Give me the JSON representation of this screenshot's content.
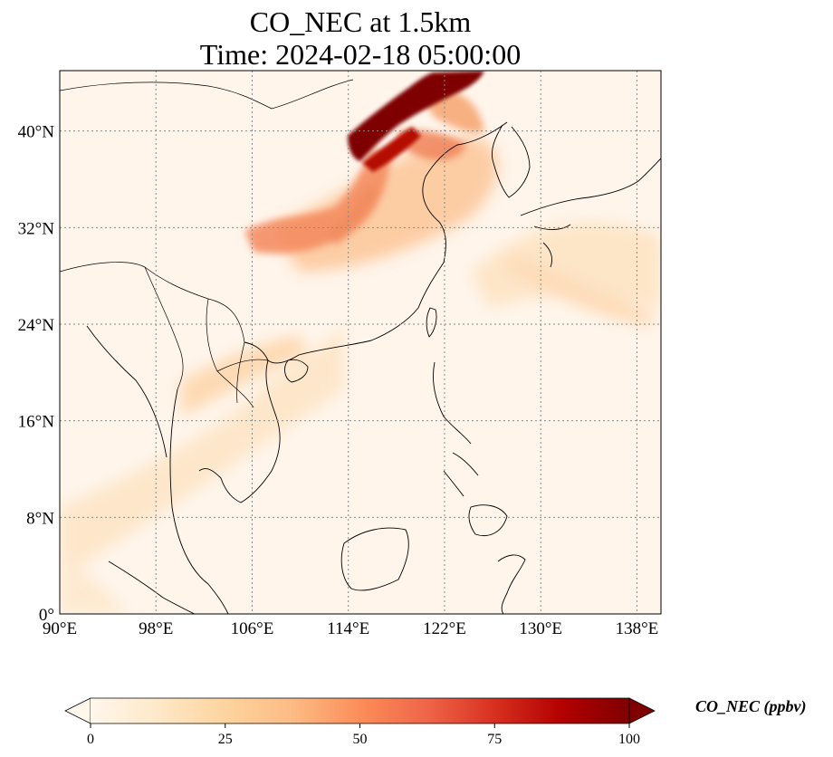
{
  "title": {
    "line1": "CO_NEC at 1.5km",
    "line2": "Time: 2024-02-18 05:00:00"
  },
  "map": {
    "lon_range": [
      90,
      140
    ],
    "lat_range": [
      0,
      45
    ],
    "lon_ticks": [
      90,
      98,
      106,
      114,
      122,
      130,
      138
    ],
    "lat_ticks": [
      0,
      8,
      16,
      24,
      32,
      40
    ],
    "lon_tick_labels": [
      "90°E",
      "98°E",
      "106°E",
      "114°E",
      "122°E",
      "130°E",
      "138°E"
    ],
    "lat_tick_labels": [
      "0°",
      "8°N",
      "16°N",
      "24°N",
      "32°N",
      "40°N"
    ],
    "gridlines": true,
    "background_color": "#fff5eb"
  },
  "colorbar": {
    "label": "CO_NEC (ppbv)",
    "min": 0,
    "max": 100,
    "ticks": [
      0,
      25,
      50,
      75,
      100
    ],
    "tick_labels": [
      "0",
      "25",
      "50",
      "75",
      "100"
    ],
    "extend": "both",
    "colormap": "OrRd",
    "colors": [
      "#fff7ec",
      "#fee8c8",
      "#fdd49e",
      "#fdbb84",
      "#fc8d59",
      "#ef6548",
      "#d7301f",
      "#b30000",
      "#7f0000"
    ]
  }
}
